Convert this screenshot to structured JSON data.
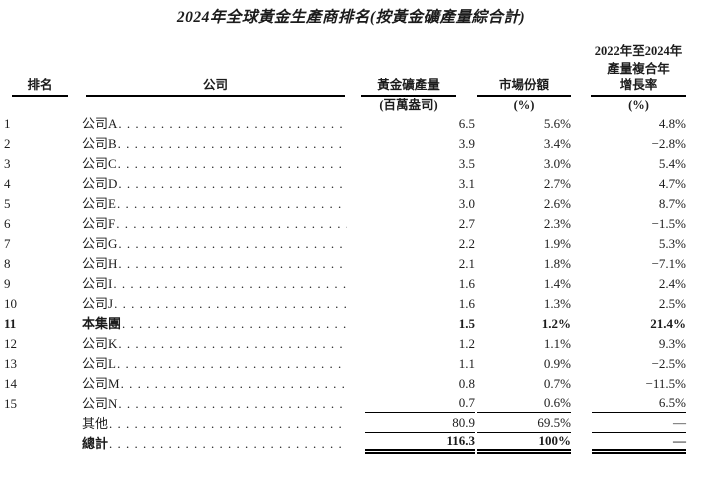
{
  "title": "2024年全球黃金生產商排名(按黃金礦產量綜合計)",
  "colors": {
    "text": "#1c1c1c",
    "rule": "#000000",
    "background": "#ffffff"
  },
  "table": {
    "headers": {
      "rank": "排名",
      "company": "公司",
      "production_line1": "黃金礦產量",
      "production_line2": "(百萬盎司)",
      "share_line1": "市場份額",
      "share_line2": "(%)",
      "growth_line1": "2022年至2024年",
      "growth_line2": "產量複合年",
      "growth_line3": "增長率",
      "growth_line4": "(%)"
    },
    "rows": [
      {
        "rank": "1",
        "company": "公司A",
        "production": "6.5",
        "share": "5.6%",
        "growth": "4.8%",
        "bold": false,
        "rule": null
      },
      {
        "rank": "2",
        "company": "公司B",
        "production": "3.9",
        "share": "3.4%",
        "growth": "−2.8%",
        "bold": false,
        "rule": null
      },
      {
        "rank": "3",
        "company": "公司C",
        "production": "3.5",
        "share": "3.0%",
        "growth": "5.4%",
        "bold": false,
        "rule": null
      },
      {
        "rank": "4",
        "company": "公司D",
        "production": "3.1",
        "share": "2.7%",
        "growth": "4.7%",
        "bold": false,
        "rule": null
      },
      {
        "rank": "5",
        "company": "公司E",
        "production": "3.0",
        "share": "2.6%",
        "growth": "8.7%",
        "bold": false,
        "rule": null
      },
      {
        "rank": "6",
        "company": "公司F",
        "production": "2.7",
        "share": "2.3%",
        "growth": "−1.5%",
        "bold": false,
        "rule": null
      },
      {
        "rank": "7",
        "company": "公司G",
        "production": "2.2",
        "share": "1.9%",
        "growth": "5.3%",
        "bold": false,
        "rule": null
      },
      {
        "rank": "8",
        "company": "公司H",
        "production": "2.1",
        "share": "1.8%",
        "growth": "−7.1%",
        "bold": false,
        "rule": null
      },
      {
        "rank": "9",
        "company": "公司I",
        "production": "1.6",
        "share": "1.4%",
        "growth": "2.4%",
        "bold": false,
        "rule": null
      },
      {
        "rank": "10",
        "company": "公司J",
        "production": "1.6",
        "share": "1.3%",
        "growth": "2.5%",
        "bold": false,
        "rule": null
      },
      {
        "rank": "11",
        "company": "本集團",
        "production": "1.5",
        "share": "1.2%",
        "growth": "21.4%",
        "bold": true,
        "rule": null
      },
      {
        "rank": "12",
        "company": "公司K",
        "production": "1.2",
        "share": "1.1%",
        "growth": "9.3%",
        "bold": false,
        "rule": null
      },
      {
        "rank": "13",
        "company": "公司L",
        "production": "1.1",
        "share": "0.9%",
        "growth": "−2.5%",
        "bold": false,
        "rule": null
      },
      {
        "rank": "14",
        "company": "公司M",
        "production": "0.8",
        "share": "0.7%",
        "growth": "−11.5%",
        "bold": false,
        "rule": null
      },
      {
        "rank": "15",
        "company": "公司N",
        "production": "0.7",
        "share": "0.6%",
        "growth": "6.5%",
        "bold": false,
        "rule": "single"
      },
      {
        "rank": "",
        "company": "其他",
        "production": "80.9",
        "share": "69.5%",
        "growth": "—",
        "bold": false,
        "rule": "single"
      },
      {
        "rank": "",
        "company": "總計",
        "production": "116.3",
        "share": "100%",
        "growth": "—",
        "bold": true,
        "rule": "double"
      }
    ]
  }
}
